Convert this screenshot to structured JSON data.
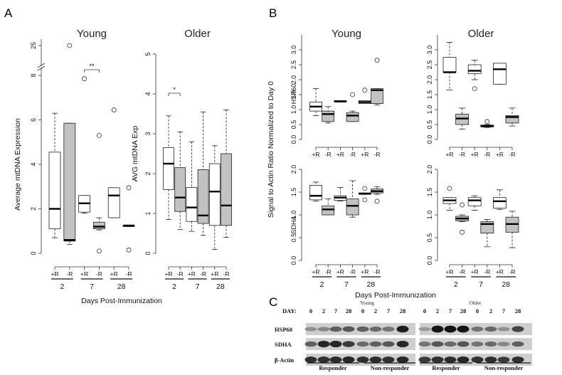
{
  "figure": {
    "panels": {
      "a": "A",
      "b": "B",
      "c": "C"
    }
  },
  "chart_data": [
    {
      "type": "box",
      "panel": "A",
      "title": "Young",
      "ylabel": "Average mtDNA Expression",
      "ylim": [
        0,
        8
      ],
      "axis_break": {
        "marker": "//",
        "upper_tick": "25"
      },
      "y_ticks": [
        "0",
        "2",
        "4",
        "6",
        "8"
      ],
      "categories": [
        "+R",
        "-R",
        "+R",
        "-R",
        "+R",
        "-R"
      ],
      "groups": [
        "2",
        "7",
        "28"
      ],
      "fills": [
        "white",
        "gray",
        "white",
        "gray",
        "white",
        "gray"
      ],
      "boxes": [
        {
          "min": 0.7,
          "q1": 1.1,
          "median": 2.0,
          "q3": 4.55,
          "max": 6.3,
          "outliers": []
        },
        {
          "min": 0.4,
          "q1": 0.55,
          "median": 0.6,
          "q3": 5.85,
          "max": 5.85,
          "outliers": [],
          "outliers_high": [
            25
          ]
        },
        {
          "min": 1.8,
          "q1": 1.85,
          "median": 2.25,
          "q3": 2.6,
          "max": 2.6,
          "outliers": [
            7.85
          ]
        },
        {
          "min": 1.05,
          "q1": 1.1,
          "median": 1.2,
          "q3": 1.4,
          "max": 1.6,
          "outliers": [
            5.3,
            0.1
          ]
        },
        {
          "min": 1.6,
          "q1": 1.6,
          "median": 2.6,
          "q3": 2.95,
          "max": 2.95,
          "outliers": [
            6.45
          ]
        },
        {
          "min": 1.2,
          "q1": 1.2,
          "median": 1.25,
          "q3": 1.25,
          "max": 1.25,
          "outliers": [
            2.95,
            0.15
          ]
        }
      ],
      "significance": [
        {
          "between": [
            2,
            3
          ],
          "label": "**"
        }
      ]
    },
    {
      "type": "box",
      "panel": "A",
      "title": "Older",
      "ylabel": "AVG mtDNA Exp",
      "ylim": [
        0,
        5
      ],
      "y_ticks": [
        "0",
        "1",
        "2",
        "3",
        "4",
        "5"
      ],
      "categories": [
        "+R",
        "-R",
        "+R",
        "-R",
        "+R",
        "-R"
      ],
      "groups": [
        "2",
        "7",
        "28"
      ],
      "fills": [
        "white",
        "gray",
        "white",
        "gray",
        "white",
        "gray"
      ],
      "boxes": [
        {
          "min": 0.85,
          "q1": 1.6,
          "median": 2.25,
          "q3": 2.65,
          "max": 3.45,
          "outliers": []
        },
        {
          "min": 0.6,
          "q1": 1.05,
          "median": 1.4,
          "q3": 2.15,
          "max": 3.05,
          "outliers": []
        },
        {
          "min": 0.55,
          "q1": 0.8,
          "median": 1.15,
          "q3": 1.65,
          "max": 2.8,
          "outliers": []
        },
        {
          "min": 0.45,
          "q1": 0.75,
          "median": 0.95,
          "q3": 2.1,
          "max": 3.55,
          "outliers": []
        },
        {
          "min": 0.1,
          "q1": 0.7,
          "median": 1.55,
          "q3": 2.25,
          "max": 2.7,
          "outliers": []
        },
        {
          "min": 0.4,
          "q1": 0.7,
          "median": 1.2,
          "q3": 2.5,
          "max": 3.6,
          "outliers": []
        }
      ],
      "significance": [
        {
          "between": [
            0,
            1
          ],
          "label": "*"
        }
      ]
    },
    {
      "type": "box",
      "panel": "B",
      "title": "Young",
      "row_label": "HSP60",
      "ylim": [
        0,
        3.5
      ],
      "y_ticks": [
        "0.0",
        "0.5",
        "1.0",
        "1.5",
        "2.0",
        "2.5",
        "3.0"
      ],
      "categories": [
        "+R",
        "-R",
        "+R",
        "-R",
        "+R",
        "-R"
      ],
      "fills": [
        "white",
        "gray",
        "white",
        "gray",
        "white",
        "gray"
      ],
      "boxes": [
        {
          "min": 0.8,
          "q1": 0.95,
          "median": 1.1,
          "q3": 1.25,
          "max": 1.7,
          "outliers": []
        },
        {
          "min": 0.55,
          "q1": 0.6,
          "median": 0.85,
          "q3": 0.95,
          "max": 1.1,
          "outliers": []
        },
        {
          "min": 1.25,
          "q1": 1.25,
          "median": 1.28,
          "q3": 1.3,
          "max": 1.3,
          "outliers": []
        },
        {
          "min": 0.6,
          "q1": 0.6,
          "median": 0.8,
          "q3": 0.9,
          "max": 0.95,
          "outliers": [
            1.5
          ]
        },
        {
          "min": 1.2,
          "q1": 1.2,
          "median": 1.25,
          "q3": 1.3,
          "max": 1.3,
          "outliers": [
            1.65
          ]
        },
        {
          "min": 1.15,
          "q1": 1.2,
          "median": 1.65,
          "q3": 1.7,
          "max": 1.7,
          "outliers": [
            2.65
          ]
        }
      ]
    },
    {
      "type": "box",
      "panel": "B",
      "title": "Older",
      "row_label": "HSP60",
      "ylim": [
        0,
        3.5
      ],
      "y_ticks": [
        "0.0",
        "0.5",
        "1.0",
        "1.5",
        "2.0",
        "2.5",
        "3.0"
      ],
      "categories": [
        "+R",
        "-R",
        "+R",
        "-R",
        "+R",
        "-R"
      ],
      "fills": [
        "white",
        "gray",
        "white",
        "gray",
        "white",
        "gray"
      ],
      "boxes": [
        {
          "min": 1.65,
          "q1": 2.25,
          "median": 2.25,
          "q3": 2.75,
          "max": 3.25,
          "outliers": []
        },
        {
          "min": 0.35,
          "q1": 0.5,
          "median": 0.7,
          "q3": 0.85,
          "max": 1.05,
          "outliers": []
        },
        {
          "min": 2.0,
          "q1": 2.2,
          "median": 2.3,
          "q3": 2.5,
          "max": 2.65,
          "outliers": [
            1.7
          ]
        },
        {
          "min": 0.4,
          "q1": 0.42,
          "median": 0.45,
          "q3": 0.48,
          "max": 0.5,
          "outliers": [
            0.6
          ]
        },
        {
          "min": 1.85,
          "q1": 1.85,
          "median": 2.35,
          "q3": 2.55,
          "max": 2.55,
          "outliers": []
        },
        {
          "min": 0.45,
          "q1": 0.55,
          "median": 0.75,
          "q3": 0.8,
          "max": 1.05,
          "outliers": []
        }
      ]
    },
    {
      "type": "box",
      "panel": "B",
      "title": "Young",
      "row_label": "SDHA",
      "ylim": [
        0,
        2.0
      ],
      "y_ticks": [
        "0.0",
        "0.5",
        "1.0",
        "1.5",
        "2.0"
      ],
      "categories": [
        "+R",
        "-R",
        "+R",
        "-R",
        "+R",
        "-R"
      ],
      "groups": [
        "2",
        "7",
        "28"
      ],
      "fills": [
        "white",
        "gray",
        "white",
        "gray",
        "white",
        "gray"
      ],
      "boxes": [
        {
          "min": 1.3,
          "q1": 1.33,
          "median": 1.42,
          "q3": 1.65,
          "max": 1.72,
          "outliers": []
        },
        {
          "min": 1.0,
          "q1": 1.0,
          "median": 1.12,
          "q3": 1.2,
          "max": 1.35,
          "outliers": []
        },
        {
          "min": 1.3,
          "q1": 1.32,
          "median": 1.38,
          "q3": 1.42,
          "max": 1.6,
          "outliers": []
        },
        {
          "min": 0.95,
          "q1": 1.0,
          "median": 1.2,
          "q3": 1.35,
          "max": 1.75,
          "outliers": []
        },
        {
          "min": 1.45,
          "q1": 1.45,
          "median": 1.47,
          "q3": 1.48,
          "max": 1.48,
          "outliers": [
            1.58,
            1.33
          ]
        },
        {
          "min": 1.45,
          "q1": 1.48,
          "median": 1.52,
          "q3": 1.57,
          "max": 1.62,
          "outliers": [
            1.3
          ]
        }
      ]
    },
    {
      "type": "box",
      "panel": "B",
      "title": "Older",
      "row_label": "SDHA",
      "ylim": [
        0,
        2.0
      ],
      "y_ticks": [
        "0.0",
        "0.5",
        "1.0",
        "1.5",
        "2.0"
      ],
      "categories": [
        "+R",
        "-R",
        "+R",
        "-R",
        "+R",
        "-R"
      ],
      "groups": [
        "2",
        "7",
        "28"
      ],
      "fills": [
        "white",
        "gray",
        "white",
        "gray",
        "white",
        "gray"
      ],
      "boxes": [
        {
          "min": 1.1,
          "q1": 1.25,
          "median": 1.32,
          "q3": 1.38,
          "max": 1.38,
          "outliers": [
            1.58
          ]
        },
        {
          "min": 0.85,
          "q1": 0.87,
          "median": 0.92,
          "q3": 0.97,
          "max": 1.0,
          "outliers": [
            1.22,
            0.62
          ]
        },
        {
          "min": 1.1,
          "q1": 1.2,
          "median": 1.32,
          "q3": 1.38,
          "max": 1.42,
          "outliers": []
        },
        {
          "min": 0.3,
          "q1": 0.6,
          "median": 0.8,
          "q3": 0.85,
          "max": 0.9,
          "outliers": []
        },
        {
          "min": 1.12,
          "q1": 1.15,
          "median": 1.3,
          "q3": 1.38,
          "max": 1.55,
          "outliers": []
        },
        {
          "min": 0.28,
          "q1": 0.62,
          "median": 0.8,
          "q3": 0.95,
          "max": 1.08,
          "outliers": []
        }
      ]
    }
  ],
  "panelB": {
    "ylabel": "Signal to Actin Ratio Normalized to Day 0",
    "row_labels": [
      "HSP60",
      "SDHA"
    ]
  },
  "xaxis": {
    "label": "Days Post-Immunization",
    "tick_labels": [
      "+R",
      "-R",
      "+R",
      "-R",
      "+R",
      "-R"
    ],
    "groups": [
      "2",
      "7",
      "28"
    ]
  },
  "blot": {
    "day_label": "DAY:",
    "young_label": "Young",
    "older_label": "Older",
    "days": [
      "0",
      "2",
      "7",
      "28",
      "0",
      "2",
      "7",
      "28"
    ],
    "rows": [
      "HSP60",
      "SDHA",
      "β-Actin"
    ],
    "responder_label": "Responder",
    "nonresponder_label": "Non-responder",
    "band_intensity": {
      "HSP60": [
        [
          0.3,
          0.35,
          0.55,
          0.6,
          0.55,
          0.5,
          0.45,
          0.9
        ],
        [
          0.25,
          0.95,
          0.95,
          0.95,
          0.45,
          0.5,
          0.3,
          0.7
        ]
      ],
      "SDHA": [
        [
          0.55,
          0.85,
          0.85,
          0.75,
          0.5,
          0.55,
          0.6,
          0.85
        ],
        [
          0.45,
          0.6,
          0.5,
          0.6,
          0.45,
          0.5,
          0.35,
          0.55
        ]
      ],
      "β-Actin": [
        [
          0.8,
          0.8,
          0.82,
          0.85,
          0.8,
          0.82,
          0.8,
          0.85
        ],
        [
          0.75,
          0.8,
          0.82,
          0.85,
          0.8,
          0.8,
          0.75,
          0.8
        ]
      ]
    }
  }
}
